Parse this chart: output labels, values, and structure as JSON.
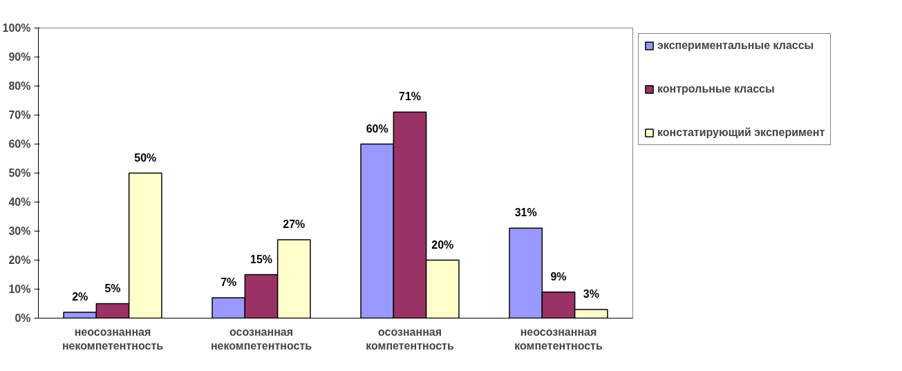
{
  "chart_data": {
    "type": "bar",
    "categories": [
      "неосознанная\nнекомпетентность",
      "осознанная\nнекомпетентность",
      "осознанная\nкомпетентность",
      "неосознанная\nкомпетентность"
    ],
    "series": [
      {
        "name": "экспериментальные классы",
        "color": "#9999ff",
        "values": [
          2,
          7,
          60,
          31
        ],
        "value_labels": [
          "2%",
          "7%",
          "60%",
          "31%"
        ]
      },
      {
        "name": "контрольные классы",
        "color": "#993366",
        "values": [
          5,
          15,
          71,
          9
        ],
        "value_labels": [
          "5%",
          "15%",
          "71%",
          "9%"
        ]
      },
      {
        "name": "констатирующий эксперимент",
        "color": "#ffffcc",
        "values": [
          50,
          27,
          20,
          3
        ],
        "value_labels": [
          "50%",
          "27%",
          "20%",
          "3%"
        ]
      }
    ],
    "ylim": [
      0,
      100
    ],
    "yticks": [
      {
        "value": 0,
        "label": "0%"
      },
      {
        "value": 10,
        "label": "10%"
      },
      {
        "value": 20,
        "label": "20%"
      },
      {
        "value": 30,
        "label": "30%"
      },
      {
        "value": 40,
        "label": "40%"
      },
      {
        "value": 50,
        "label": "50%"
      },
      {
        "value": 60,
        "label": "60%"
      },
      {
        "value": 70,
        "label": "70%"
      },
      {
        "value": 80,
        "label": "80%"
      },
      {
        "value": 90,
        "label": "90%"
      },
      {
        "value": 100,
        "label": "100%"
      }
    ],
    "grid": false,
    "legend": "right"
  }
}
